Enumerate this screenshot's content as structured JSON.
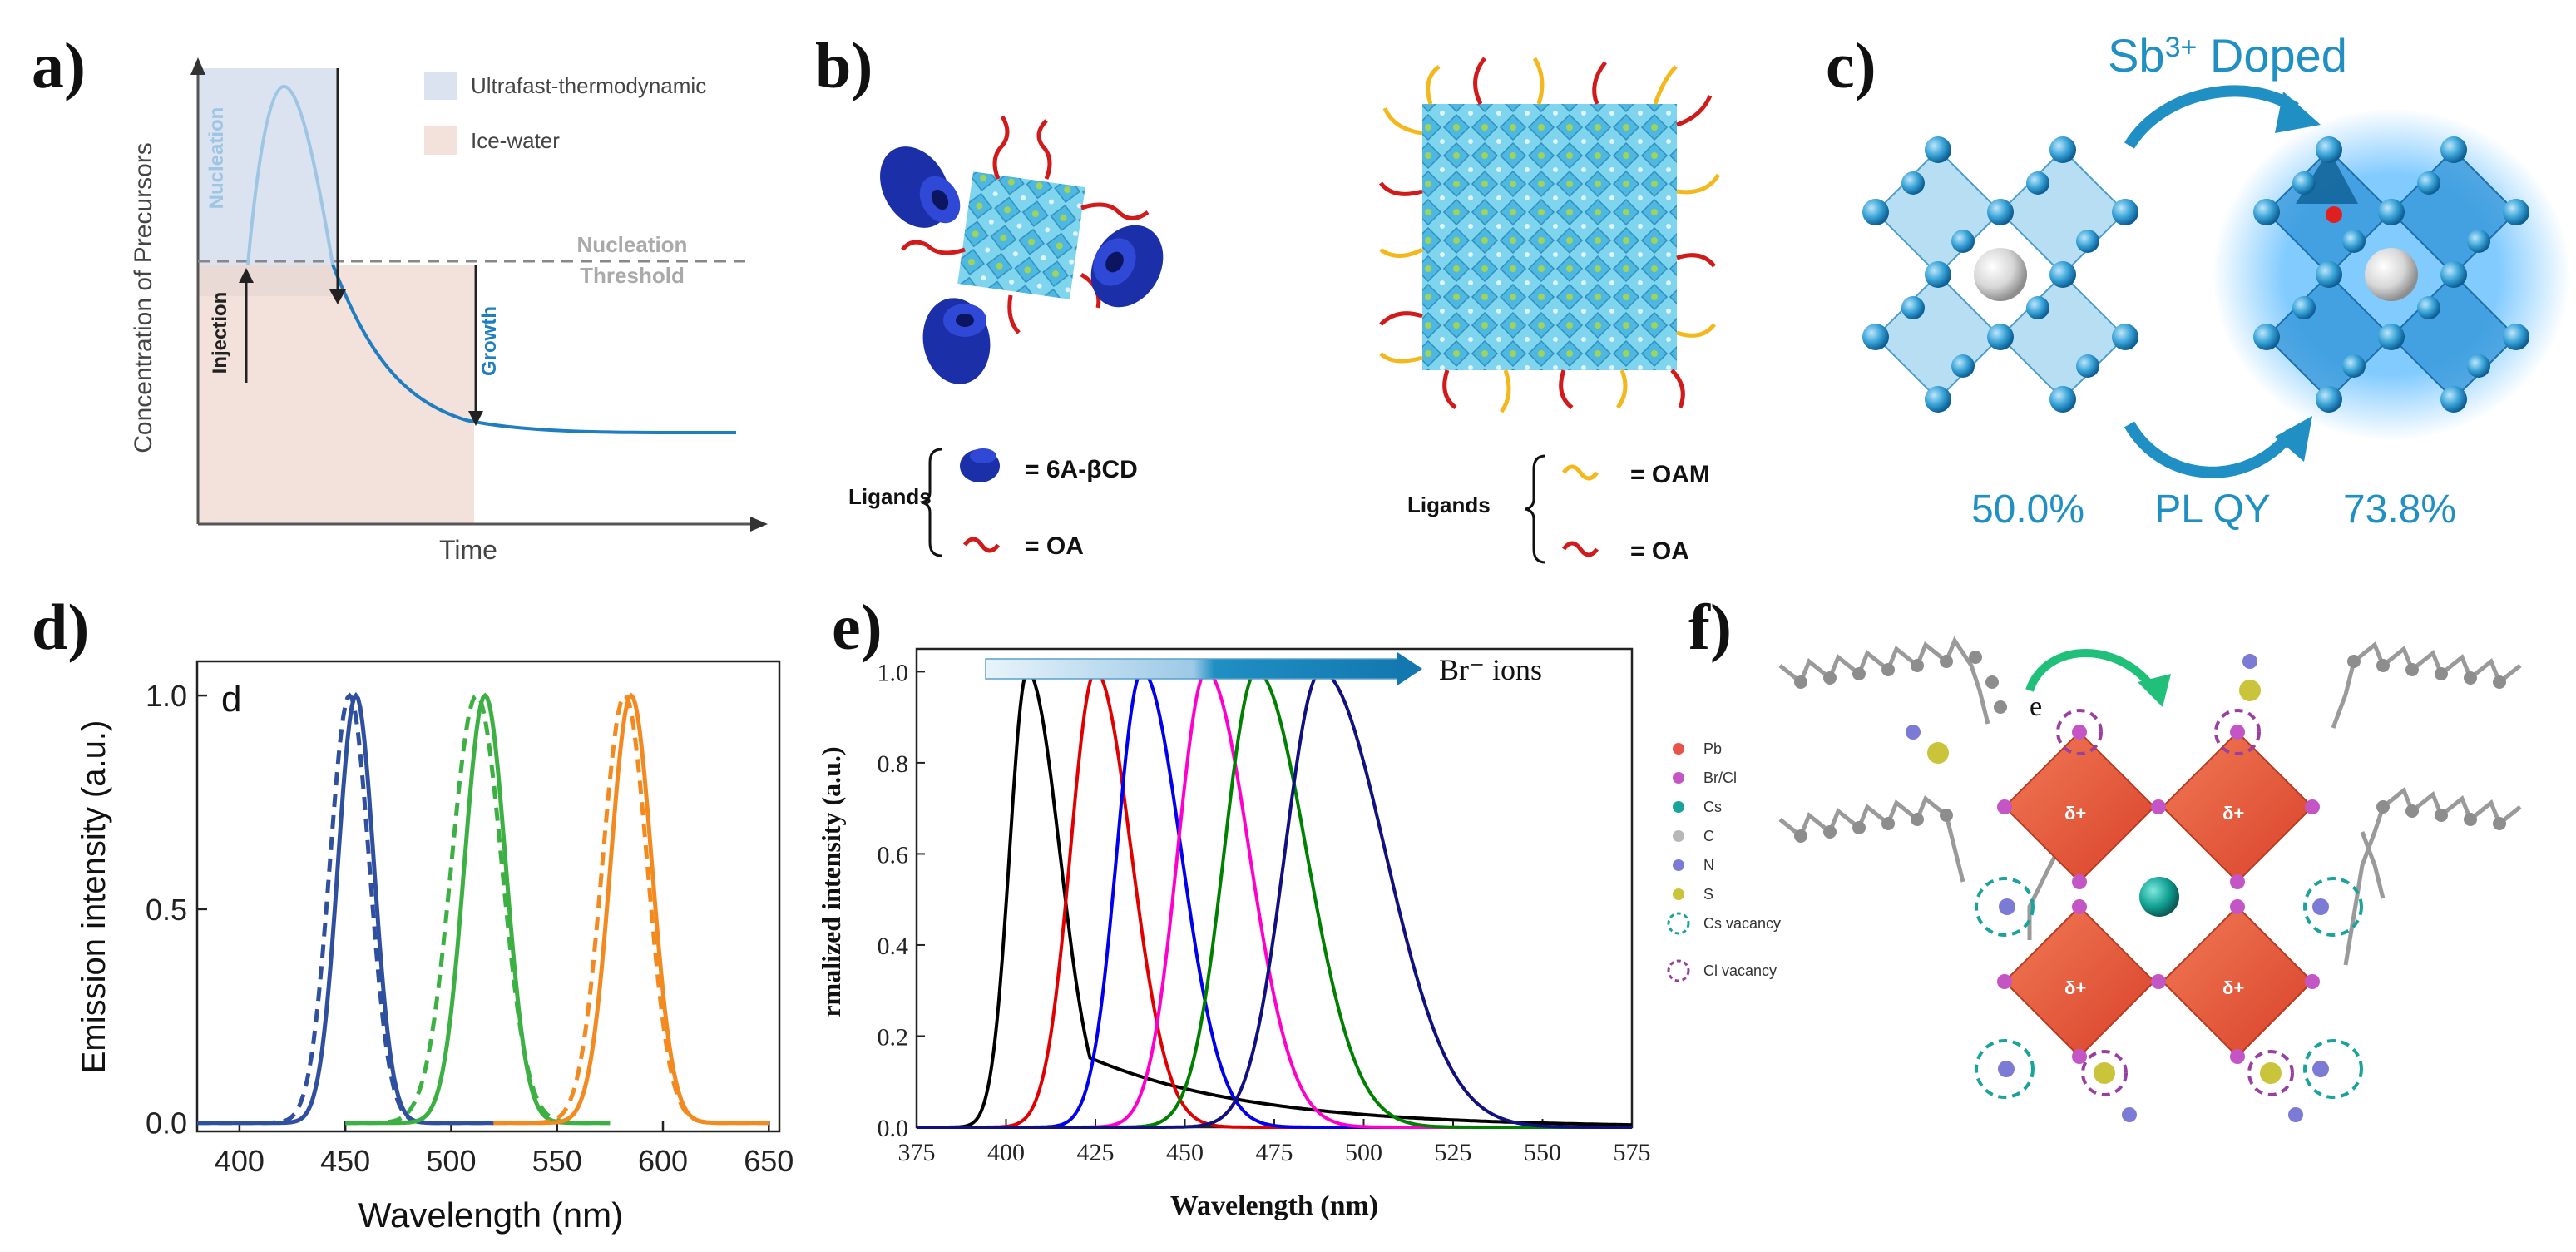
{
  "panels": {
    "a": {
      "letter": "a)",
      "ylabel": "Concentration of Precursors",
      "xlabel": "Time",
      "legend": [
        {
          "label": "Ultrafast-thermodynamic",
          "color": "#dbe3f0"
        },
        {
          "label": "Ice-water",
          "color": "#f3e1dc"
        }
      ],
      "nucleation_label": "Nucleation",
      "threshold_line1": "Nucleation",
      "threshold_line2": "Threshold",
      "injection_label": "Injection",
      "growth_label": "Growth"
    },
    "b": {
      "letter": "b)",
      "left_ligands_label": "Ligands",
      "left_ligand_1": "=   6A-βCD",
      "left_ligand_2": "=   OA",
      "right_ligands_label": "Ligands",
      "right_ligand_1": "= OAM",
      "right_ligand_2": "= OA"
    },
    "c": {
      "letter": "c)",
      "title_main": "Sb",
      "title_sup": "3+",
      "title_rest": " Doped",
      "value_left": "50.0%",
      "center_label": "PL QY",
      "value_right": "73.8%",
      "accent": "#1f8fc4"
    },
    "d": {
      "letter": "d)",
      "inner_letter": "d",
      "ylabel": "Emission intensity (a.u.)",
      "xlabel": "Wavelength (nm)"
    },
    "e": {
      "letter": "e)",
      "ylabel": "rmalized intensity (a.u.)",
      "xlabel": "Wavelength (nm)",
      "arrow_label": "Br⁻ ions"
    },
    "f": {
      "letter": "f)",
      "electron_label": "e",
      "delta_label": "δ+",
      "legend": [
        {
          "label": "Pb",
          "color": "#e8534a"
        },
        {
          "label": "Br/Cl",
          "color": "#c455c4"
        },
        {
          "label": "Cs",
          "color": "#1aa39a"
        },
        {
          "label": "C",
          "color": "#b8b8b8"
        },
        {
          "label": "N",
          "color": "#7b7bd6"
        },
        {
          "label": "S",
          "color": "#c9c43a"
        },
        {
          "label": "Cs vacancy",
          "color": "#1aa39a"
        },
        {
          "label": "Cl vacancy",
          "color": "#9a3fa0"
        }
      ]
    }
  },
  "chart_data": [
    {
      "id": "d",
      "type": "line",
      "title": "",
      "xlabel": "Wavelength (nm)",
      "ylabel": "Emission intensity (a.u.)",
      "xlim": [
        380,
        655
      ],
      "ylim": [
        -0.02,
        1.08
      ],
      "xticks": [
        400,
        450,
        500,
        550,
        600,
        650
      ],
      "yticks": [
        0.0,
        0.5,
        1.0
      ],
      "series": [
        {
          "name": "blue solid",
          "color": "#2f4f9f",
          "dash": false,
          "peak": 455,
          "fwhm": 20,
          "xrange": [
            380,
            520
          ]
        },
        {
          "name": "blue dashed",
          "color": "#2f4f9f",
          "dash": true,
          "peak": 452,
          "fwhm": 22,
          "xrange": [
            380,
            520
          ]
        },
        {
          "name": "green solid",
          "color": "#3cb043",
          "dash": false,
          "peak": 516,
          "fwhm": 23,
          "xrange": [
            450,
            575
          ]
        },
        {
          "name": "green dashed",
          "color": "#3cb043",
          "dash": true,
          "peak": 512,
          "fwhm": 28,
          "xrange": [
            450,
            575
          ]
        },
        {
          "name": "orange solid",
          "color": "#f28a20",
          "dash": false,
          "peak": 585,
          "fwhm": 23,
          "xrange": [
            520,
            650
          ]
        },
        {
          "name": "orange dashed",
          "color": "#f28a20",
          "dash": true,
          "peak": 582,
          "fwhm": 25,
          "xrange": [
            520,
            650
          ]
        }
      ]
    },
    {
      "id": "e",
      "type": "line",
      "title": "",
      "xlabel": "Wavelength (nm)",
      "ylabel": "rmalized intensity (a.u.)",
      "xlim": [
        375,
        575
      ],
      "ylim": [
        0,
        1.05
      ],
      "xticks": [
        375,
        400,
        425,
        450,
        475,
        500,
        525,
        550,
        575
      ],
      "yticks": [
        0.0,
        0.2,
        0.4,
        0.6,
        0.8,
        1.0
      ],
      "series": [
        {
          "name": "s1",
          "color": "#000000",
          "peak": 406,
          "left_w": 5,
          "right_w": 9,
          "tail": 0.18
        },
        {
          "name": "s2",
          "color": "#e00000",
          "peak": 425,
          "left_w": 7,
          "right_w": 10,
          "tail": 0.0
        },
        {
          "name": "s3",
          "color": "#0000ee",
          "peak": 438,
          "left_w": 7,
          "right_w": 11,
          "tail": 0.0
        },
        {
          "name": "s4",
          "color": "#ff00cc",
          "peak": 456,
          "left_w": 8,
          "right_w": 12,
          "tail": 0.0
        },
        {
          "name": "s5",
          "color": "#008000",
          "peak": 470,
          "left_w": 9,
          "right_w": 14,
          "tail": 0.0
        },
        {
          "name": "s6",
          "color": "#101080",
          "peak": 488,
          "left_w": 10,
          "right_w": 18,
          "tail": 0.0
        }
      ]
    }
  ]
}
